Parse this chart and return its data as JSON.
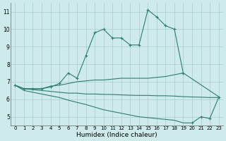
{
  "line1_x": [
    0,
    1,
    2,
    3,
    4,
    5,
    6,
    7,
    8,
    9,
    10,
    11,
    12,
    13,
    14,
    15,
    16,
    17,
    18,
    19
  ],
  "line1_y": [
    6.8,
    6.6,
    6.6,
    6.6,
    6.7,
    6.9,
    7.5,
    7.2,
    8.5,
    9.8,
    10.0,
    9.5,
    9.5,
    9.1,
    9.1,
    11.1,
    10.7,
    10.2,
    10.0,
    7.5
  ],
  "line2_x": [
    0,
    1,
    2,
    3,
    4,
    5,
    6,
    7,
    8,
    9,
    10,
    11,
    12,
    13,
    14,
    15,
    16,
    17,
    18,
    19,
    23
  ],
  "line2_y": [
    6.8,
    6.6,
    6.6,
    6.6,
    6.75,
    6.8,
    6.9,
    7.0,
    7.05,
    7.1,
    7.1,
    7.15,
    7.2,
    7.2,
    7.2,
    7.2,
    7.25,
    7.3,
    7.4,
    7.5,
    6.15
  ],
  "line3_x": [
    0,
    1,
    2,
    3,
    4,
    5,
    6,
    7,
    8,
    9,
    10,
    11,
    12,
    13,
    14,
    15,
    16,
    17,
    18,
    19,
    20,
    21,
    22,
    23
  ],
  "line3_y": [
    6.8,
    6.6,
    6.55,
    6.5,
    6.45,
    6.4,
    6.35,
    6.35,
    6.3,
    6.3,
    6.28,
    6.27,
    6.25,
    6.23,
    6.22,
    6.22,
    6.2,
    6.2,
    6.18,
    6.15,
    6.13,
    6.12,
    6.1,
    6.1
  ],
  "line4_x": [
    0,
    1,
    2,
    3,
    4,
    5,
    6,
    7,
    8,
    9,
    10,
    11,
    12,
    13,
    14,
    15,
    16,
    17,
    18,
    19,
    20,
    21,
    22,
    23
  ],
  "line4_y": [
    6.8,
    6.5,
    6.4,
    6.3,
    6.2,
    6.1,
    5.95,
    5.82,
    5.7,
    5.55,
    5.4,
    5.3,
    5.2,
    5.1,
    5.0,
    4.95,
    4.9,
    4.85,
    4.8,
    4.65,
    4.65,
    5.0,
    4.9,
    6.1
  ],
  "line1_has_markers": true,
  "line2_has_markers": false,
  "line3_has_markers": false,
  "line4_has_markers": true,
  "color": "#2e7d6e",
  "bg_color": "#ceeaea",
  "grid_color": "#aacccc",
  "xlabel": "Humidex (Indice chaleur)",
  "xlim": [
    -0.5,
    23.5
  ],
  "ylim": [
    4.5,
    11.5
  ],
  "yticks": [
    5,
    6,
    7,
    8,
    9,
    10,
    11
  ],
  "xticks": [
    0,
    1,
    2,
    3,
    4,
    5,
    6,
    7,
    8,
    9,
    10,
    11,
    12,
    13,
    14,
    15,
    16,
    17,
    18,
    19,
    20,
    21,
    22,
    23
  ],
  "xtick_labels": [
    "0",
    "1",
    "2",
    "3",
    "4",
    "5",
    "6",
    "7",
    "8",
    "9",
    "10",
    "11",
    "12",
    "13",
    "14",
    "15",
    "16",
    "17",
    "18",
    "19",
    "20",
    "21",
    "22",
    "23"
  ],
  "markersize": 2.0,
  "linewidth": 0.8,
  "tick_fontsize": 5.0,
  "xlabel_fontsize": 6.5
}
